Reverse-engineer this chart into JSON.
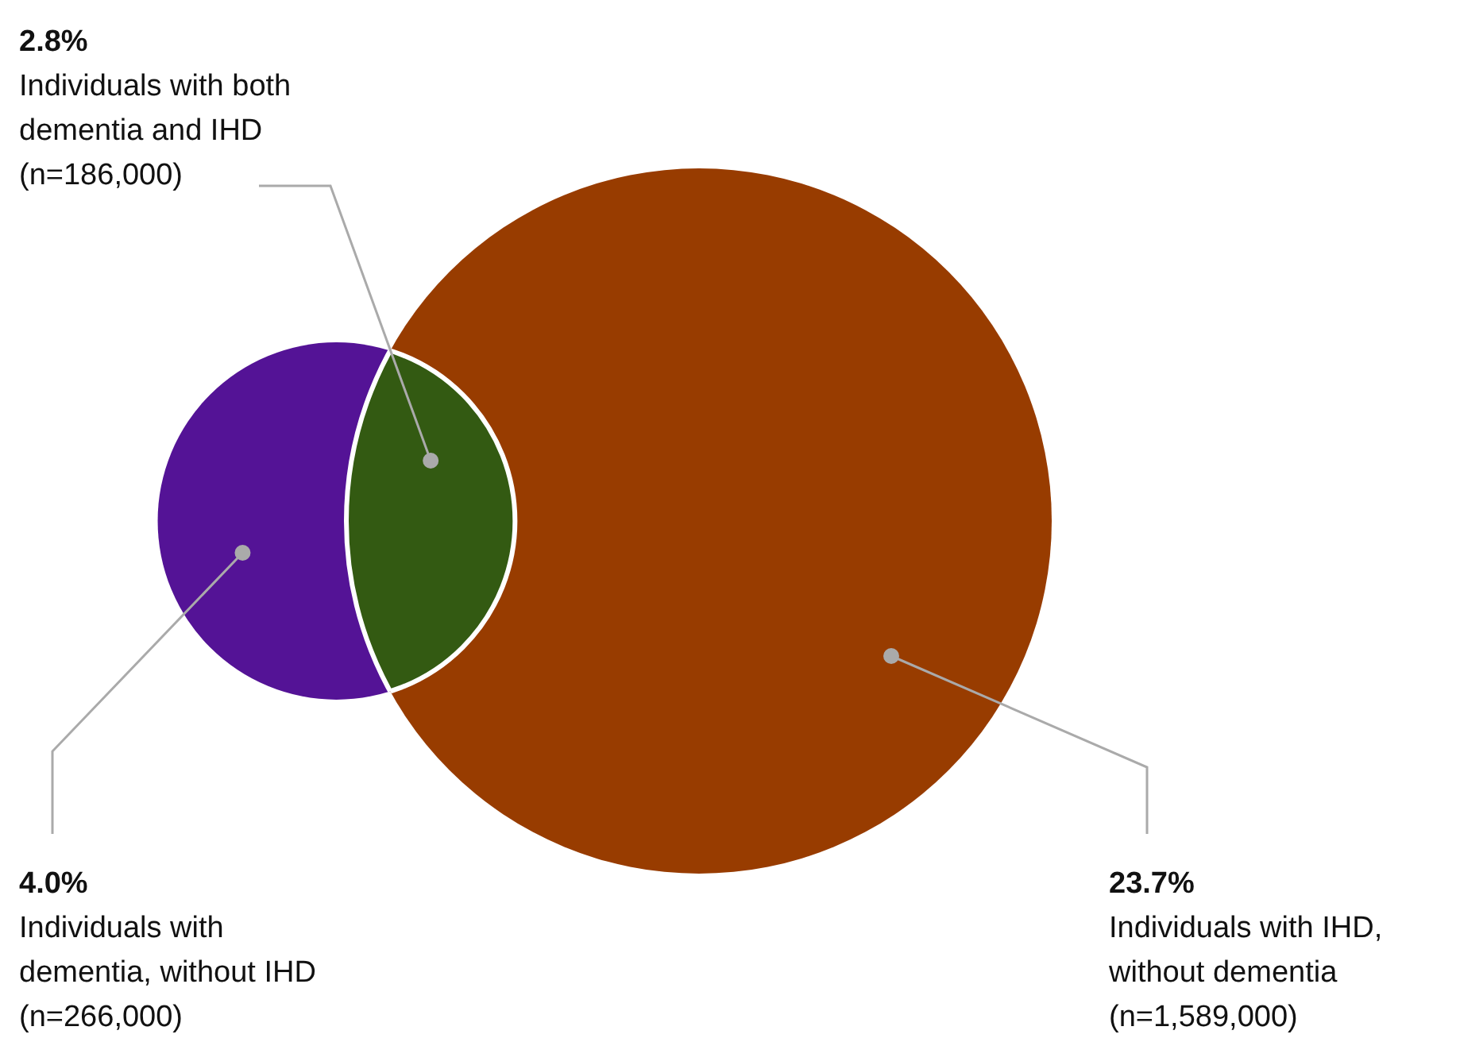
{
  "chart_data": {
    "type": "other",
    "categories": [
      "Individuals with dementia, without IHD",
      "Individuals with both dementia and IHD",
      "Individuals with IHD, without dementia"
    ],
    "values": [
      4.0,
      2.8,
      23.7
    ],
    "value_labels": [
      "4.0%",
      "2.8%",
      "23.7%"
    ],
    "colors": [
      "#541396",
      "#335a12",
      "#983c00"
    ],
    "annotations": [
      "(n=266,000)",
      "(n=186,000)",
      "(n=1,589,000)"
    ]
  }
}
